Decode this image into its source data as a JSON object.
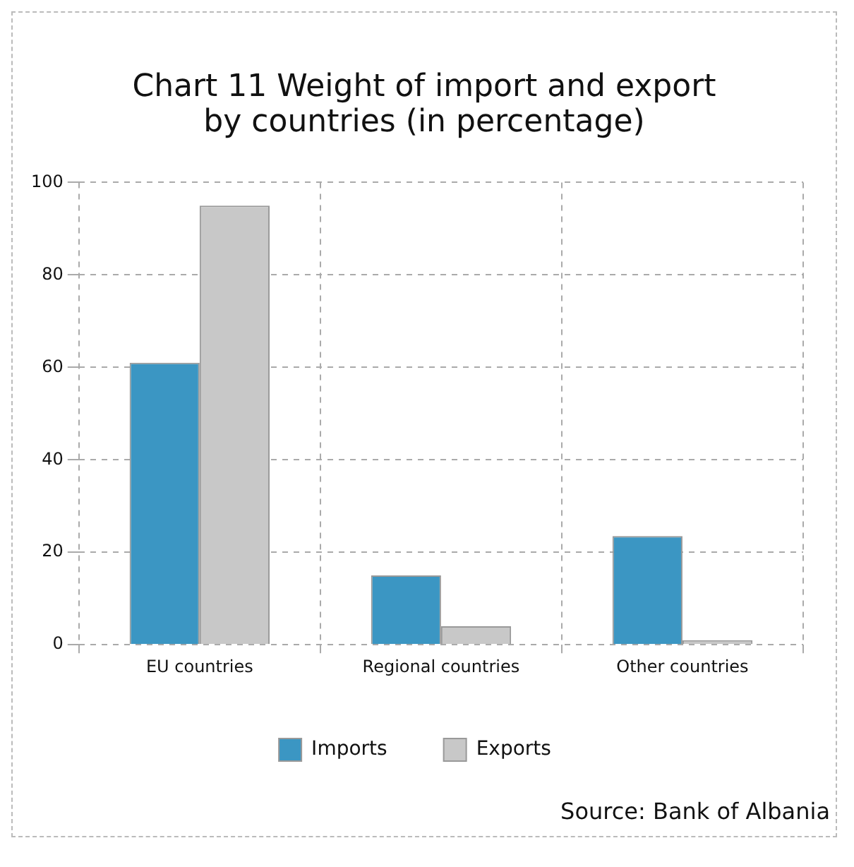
{
  "chart_data": {
    "type": "bar",
    "title": "Chart 11 Weight of import and export by countries (in percentage)",
    "categories": [
      "EU countries",
      "Regional countries",
      "Other countries"
    ],
    "series": [
      {
        "name": "Imports",
        "color": "#3b96c3",
        "values": [
          61,
          15,
          23.5
        ]
      },
      {
        "name": "Exports",
        "color": "#c8c8c8",
        "values": [
          95,
          4,
          1
        ]
      }
    ],
    "ylim": [
      0,
      100
    ],
    "yticks": [
      0,
      20,
      40,
      60,
      80,
      100
    ],
    "grid": true,
    "legend": "bottom",
    "annotations": [
      "Source: Bank of Albania"
    ]
  }
}
